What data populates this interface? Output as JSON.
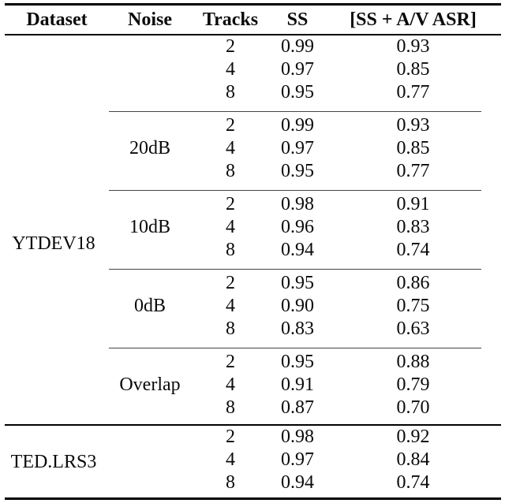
{
  "page": {
    "background": "#ffffff",
    "text_color": "#0a0a0a",
    "rule_color": "#000000",
    "cmidrule_color": "#444444"
  },
  "table": {
    "headers": [
      "Dataset",
      "Noise",
      "Tracks",
      "SS",
      "[SS + A/V ASR]"
    ],
    "sections": [
      {
        "dataset": "YTDEV18",
        "groups": [
          {
            "noise": "",
            "rows": [
              [
                "2",
                "0.99",
                "0.93"
              ],
              [
                "4",
                "0.97",
                "0.85"
              ],
              [
                "8",
                "0.95",
                "0.77"
              ]
            ]
          },
          {
            "noise": "20dB",
            "rows": [
              [
                "2",
                "0.99",
                "0.93"
              ],
              [
                "4",
                "0.97",
                "0.85"
              ],
              [
                "8",
                "0.95",
                "0.77"
              ]
            ]
          },
          {
            "noise": "10dB",
            "rows": [
              [
                "2",
                "0.98",
                "0.91"
              ],
              [
                "4",
                "0.96",
                "0.83"
              ],
              [
                "8",
                "0.94",
                "0.74"
              ]
            ]
          },
          {
            "noise": "0dB",
            "rows": [
              [
                "2",
                "0.95",
                "0.86"
              ],
              [
                "4",
                "0.90",
                "0.75"
              ],
              [
                "8",
                "0.83",
                "0.63"
              ]
            ]
          },
          {
            "noise": "Overlap",
            "rows": [
              [
                "2",
                "0.95",
                "0.88"
              ],
              [
                "4",
                "0.91",
                "0.79"
              ],
              [
                "8",
                "0.87",
                "0.70"
              ]
            ]
          }
        ]
      },
      {
        "dataset": "TED.LRS3",
        "groups": [
          {
            "noise": "",
            "rows": [
              [
                "2",
                "0.98",
                "0.92"
              ],
              [
                "4",
                "0.97",
                "0.84"
              ],
              [
                "8",
                "0.94",
                "0.74"
              ]
            ]
          }
        ]
      }
    ]
  }
}
